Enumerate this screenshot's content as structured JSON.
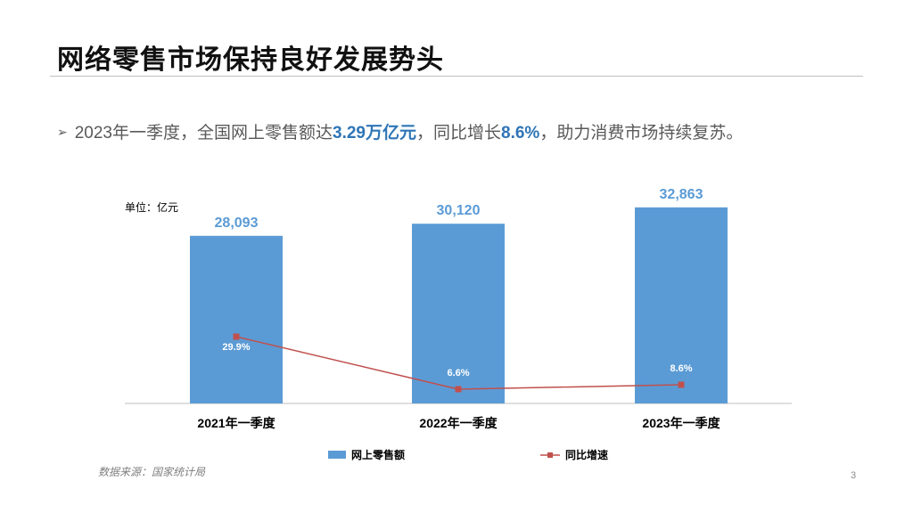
{
  "slide": {
    "title": "网络零售市场保持良好发展势头",
    "bullet": {
      "marker": "➢",
      "text_1": "2023年一季度，全国网上零售额达",
      "highlight_1": "3.29万亿元",
      "text_2": "，同比增长",
      "highlight_2": "8.6%",
      "text_3": "，助力消费市场持续复苏。"
    },
    "source": "数据来源：国家统计局",
    "page_number": "3"
  },
  "chart_data": {
    "type": "bar",
    "unit_label": "单位：亿元",
    "categories": [
      "2021年一季度",
      "2022年一季度",
      "2023年一季度"
    ],
    "series": [
      {
        "name": "网上零售额",
        "type": "bar",
        "values": [
          28093,
          30120,
          32863
        ],
        "labels": [
          "28,093",
          "30,120",
          "32,863"
        ],
        "color": "#5b9bd5",
        "label_color": "#5b9bd5"
      },
      {
        "name": "同比增速",
        "type": "line",
        "values": [
          29.9,
          6.6,
          8.6
        ],
        "labels": [
          "29.9%",
          "6.6%",
          "8.6%"
        ],
        "color": "#c0504d",
        "label_color": "#ffffff"
      }
    ],
    "legend_position": "bottom",
    "grid": false
  }
}
